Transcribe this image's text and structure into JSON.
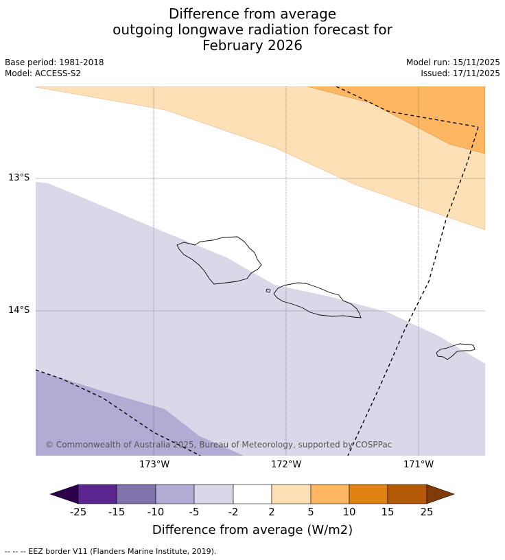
{
  "title": {
    "line1": "Difference from average",
    "line2": "outgoing longwave radiation forecast for",
    "line3": "February 2026"
  },
  "meta": {
    "base_period": "Base period: 1981-2018",
    "model": "Model: ACCESS-S2",
    "model_run": "Model run: 15/11/2025",
    "issued": "Issued: 17/11/2025"
  },
  "map": {
    "lat_labels": [
      "13°S",
      "14°S"
    ],
    "lon_labels": [
      "173°W",
      "172°W",
      "171°W"
    ],
    "copyright": "© Commonwealth of Australia 2025, Bureau of Meteorology, supported by COSPPac",
    "region_colors": {
      "neutral": "#ffffff",
      "light_orange": "#fde0b6",
      "orange": "#fdb762",
      "light_purple": "#d8d8e9",
      "purple": "#b1acd3"
    }
  },
  "colorbar": {
    "label": "Difference from average (W/m2)",
    "ticks": [
      "-25",
      "-15",
      "-10",
      "-5",
      "-2",
      "2",
      "5",
      "10",
      "15",
      "25"
    ],
    "colors": [
      "#2d004b",
      "#5c2690",
      "#8073ac",
      "#b1acd3",
      "#d8d8e9",
      "#ffffff",
      "#fde0b6",
      "#fdb762",
      "#e08213",
      "#b45a06",
      "#7f3b08"
    ]
  },
  "footnote": "--  --  -- EEZ border V11 (Flanders Marine Institute, 2019)."
}
